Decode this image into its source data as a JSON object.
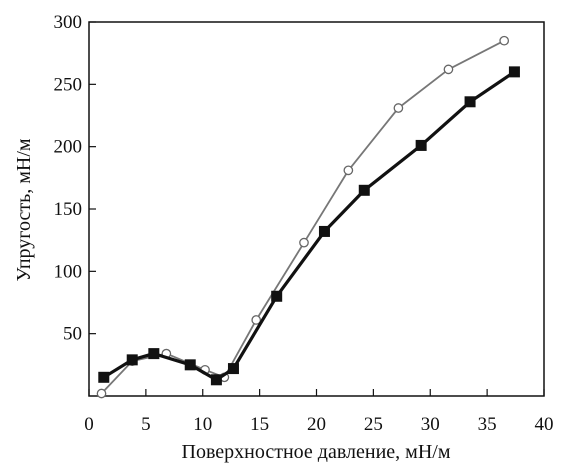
{
  "chart_data": {
    "type": "line",
    "xlabel": "Поверхностное давление, мН/м",
    "ylabel": "Упругость, мН/м",
    "xlim": [
      0,
      40
    ],
    "ylim": [
      0,
      300
    ],
    "x_ticks": [
      0,
      5,
      10,
      15,
      20,
      25,
      30,
      35,
      40
    ],
    "y_ticks": [
      50,
      100,
      150,
      200,
      250,
      300
    ],
    "grid": false,
    "legend": "none",
    "series": [
      {
        "marker": "filled-square",
        "color": "#111111",
        "points": [
          [
            1.3,
            15
          ],
          [
            3.8,
            29
          ],
          [
            5.7,
            34
          ],
          [
            8.9,
            25
          ],
          [
            11.2,
            13
          ],
          [
            12.7,
            22
          ],
          [
            16.5,
            80
          ],
          [
            20.7,
            132
          ],
          [
            24.2,
            165
          ],
          [
            29.2,
            201
          ],
          [
            33.5,
            236
          ],
          [
            37.4,
            260
          ]
        ]
      },
      {
        "marker": "open-circle",
        "color": "#777777",
        "points": [
          [
            1.1,
            2
          ],
          [
            3.8,
            28
          ],
          [
            6.8,
            34
          ],
          [
            10.2,
            21
          ],
          [
            11.9,
            15
          ],
          [
            14.7,
            61
          ],
          [
            18.9,
            123
          ],
          [
            22.8,
            181
          ],
          [
            27.2,
            231
          ],
          [
            31.6,
            262
          ],
          [
            36.5,
            285
          ]
        ]
      }
    ]
  }
}
